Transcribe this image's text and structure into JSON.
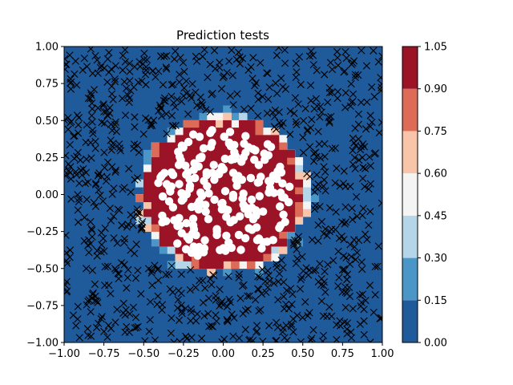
{
  "chart_data": {
    "type": "contourf-scatter",
    "title": "Prediction tests",
    "xlim": [
      -1.0,
      1.0
    ],
    "ylim": [
      -1.0,
      1.0
    ],
    "x_ticks": [
      -1.0,
      -0.75,
      -0.5,
      -0.25,
      0.0,
      0.25,
      0.5,
      0.75,
      1.0
    ],
    "y_ticks": [
      -1.0,
      -0.75,
      -0.5,
      -0.25,
      0.0,
      0.25,
      0.5,
      0.75,
      1.0
    ],
    "x_tick_labels": [
      "−1.00",
      "−0.75",
      "−0.50",
      "−0.25",
      "0.00",
      "0.25",
      "0.50",
      "0.75",
      "1.00"
    ],
    "y_tick_labels": [
      "−1.00",
      "−0.75",
      "−0.50",
      "−0.25",
      "0.00",
      "0.25",
      "0.50",
      "0.75",
      "1.00"
    ],
    "grid": false,
    "colorbar": {
      "levels": [
        0.0,
        0.15,
        0.3,
        0.45,
        0.6,
        0.75,
        0.9,
        1.05
      ],
      "labels": [
        "0.00",
        "0.15",
        "0.30",
        "0.45",
        "0.60",
        "0.75",
        "0.90",
        "1.05"
      ],
      "colors": [
        "#1f5a9b",
        "#4a96c6",
        "#b5d6e8",
        "#f4f4f4",
        "#f8c4aa",
        "#dc6c57",
        "#9b1327"
      ]
    },
    "decision_boundary": {
      "shape": "circle",
      "center": [
        0.0,
        0.0
      ],
      "radius": 0.52,
      "inside_value": 1.0,
      "outside_value": 0.0
    },
    "series": [
      {
        "marker": "x",
        "class": "outside",
        "color": "#000000",
        "count": 850
      },
      {
        "marker": "circle",
        "class": "inside",
        "color": "#ffffff",
        "count": 200
      }
    ]
  }
}
